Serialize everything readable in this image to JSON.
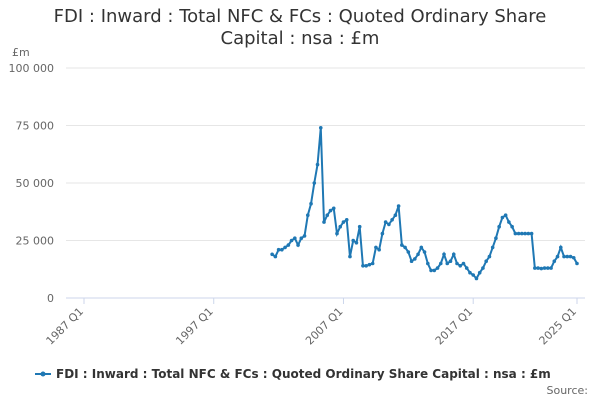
{
  "chart_data": {
    "type": "line",
    "title": "FDI : Inward : Total NFC & FCs : Quoted Ordinary Share Capital : nsa : £m",
    "y_label": "£m",
    "source": "Source:",
    "categories": [
      "1987 Q1",
      null,
      null,
      null,
      null,
      null,
      null,
      null,
      null,
      null,
      null,
      null,
      null,
      null,
      null,
      null,
      null,
      null,
      null,
      null,
      null,
      null,
      null,
      null,
      null,
      null,
      null,
      null,
      null,
      null,
      null,
      null,
      null,
      null,
      null,
      null,
      null,
      null,
      null,
      null,
      "1997 Q1",
      null,
      null,
      null,
      null,
      null,
      null,
      null,
      null,
      null,
      null,
      null,
      null,
      null,
      null,
      null,
      null,
      null,
      null,
      null,
      null,
      null,
      null,
      null,
      null,
      null,
      null,
      null,
      null,
      null,
      null,
      null,
      null,
      null,
      null,
      null,
      null,
      null,
      null,
      null,
      "2007 Q1",
      null,
      null,
      null,
      null,
      null,
      null,
      null,
      null,
      null,
      null,
      null,
      null,
      null,
      null,
      null,
      null,
      null,
      null,
      null,
      null,
      null,
      null,
      null,
      null,
      null,
      null,
      null,
      null,
      null,
      null,
      null,
      null,
      null,
      null,
      null,
      null,
      null,
      null,
      null,
      "2017 Q1",
      null,
      null,
      null,
      null,
      null,
      null,
      null,
      null,
      null,
      null,
      null,
      null,
      null,
      null,
      null,
      null,
      null,
      null,
      null,
      null,
      null,
      null,
      null,
      null,
      null,
      null,
      null,
      null,
      null,
      null,
      null,
      "2025 Q1"
    ],
    "series": [
      {
        "name": "FDI : Inward : Total NFC & FCs : Quoted Ordinary Share Capital : nsa : £m",
        "color": "#1f78b4",
        "values": [
          null,
          null,
          null,
          null,
          null,
          null,
          null,
          null,
          null,
          null,
          null,
          null,
          null,
          null,
          null,
          null,
          null,
          null,
          null,
          null,
          null,
          null,
          null,
          null,
          null,
          null,
          null,
          null,
          null,
          null,
          null,
          null,
          null,
          null,
          null,
          null,
          null,
          null,
          null,
          null,
          null,
          null,
          null,
          null,
          null,
          null,
          null,
          null,
          null,
          null,
          null,
          null,
          null,
          null,
          null,
          null,
          null,
          null,
          19000,
          18000,
          21000,
          21000,
          22000,
          23000,
          25000,
          26000,
          23000,
          26000,
          27000,
          36000,
          41000,
          50000,
          58000,
          74000,
          33000,
          36000,
          38000,
          39000,
          28000,
          31000,
          33000,
          34000,
          18000,
          25000,
          24000,
          31000,
          14000,
          14000,
          14500,
          15000,
          22000,
          21000,
          28000,
          33000,
          32000,
          34000,
          36000,
          40000,
          23000,
          22000,
          20000,
          16000,
          17000,
          19000,
          22000,
          20000,
          15000,
          12000,
          12000,
          13000,
          15000,
          19000,
          15000,
          16000,
          19000,
          15000,
          14000,
          15000,
          13000,
          11000,
          10000,
          8500,
          11000,
          13000,
          16000,
          18000,
          22000,
          26000,
          31000,
          35000,
          36000,
          33000,
          31000,
          28000,
          28000,
          28000,
          28000,
          28000,
          28000,
          13000,
          13000,
          12800,
          13000,
          13000,
          13000,
          16000,
          18000,
          22000,
          18000,
          18000,
          18000,
          17500,
          15000
        ]
      }
    ],
    "ylim": [
      0,
      100000
    ],
    "yticks": [
      0,
      {
        "value": 25000,
        "label": "25 000"
      },
      {
        "value": 50000,
        "label": "50 000"
      },
      {
        "value": 75000,
        "label": "75 000"
      },
      {
        "value": 100000,
        "label": "100 000"
      }
    ],
    "grid": true
  }
}
